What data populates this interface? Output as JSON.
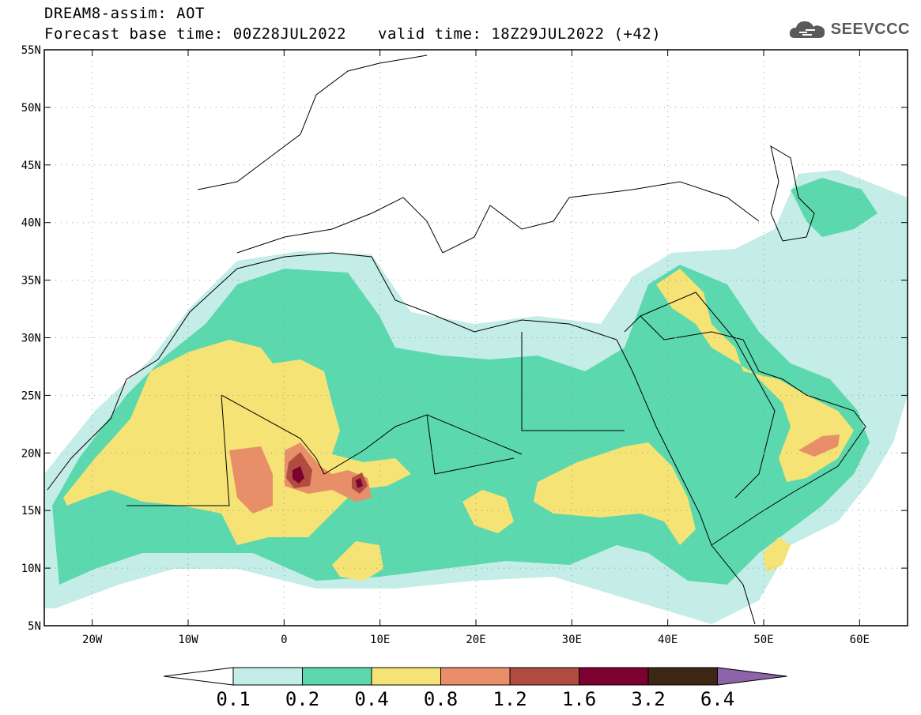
{
  "header": {
    "model_line": "DREAM8-assim: AOT",
    "base_time": "Forecast base time: 00Z28JUL2022",
    "valid_time": "valid time: 18Z29JUL2022 (+42)",
    "logo_text": "SEEVCCC",
    "logo_icon": "cloud-icon"
  },
  "map": {
    "lat_labels": [
      "55N",
      "50N",
      "45N",
      "40N",
      "35N",
      "30N",
      "25N",
      "20N",
      "15N",
      "10N",
      "5N"
    ],
    "lon_labels": [
      "20W",
      "10W",
      "0",
      "10E",
      "20E",
      "30E",
      "40E",
      "50E",
      "60E"
    ],
    "lat_range": [
      5,
      55
    ],
    "lon_range": [
      -25,
      65
    ],
    "grid": true
  },
  "colorbar": {
    "levels": [
      "0.1",
      "0.2",
      "0.4",
      "0.8",
      "1.2",
      "1.6",
      "3.2",
      "6.4"
    ],
    "colors": [
      "#ffffff",
      "#c3ede6",
      "#5bd8ad",
      "#f5e375",
      "#e88f69",
      "#b24c41",
      "#7c0030",
      "#3e2614",
      "#8f63a8"
    ]
  }
}
